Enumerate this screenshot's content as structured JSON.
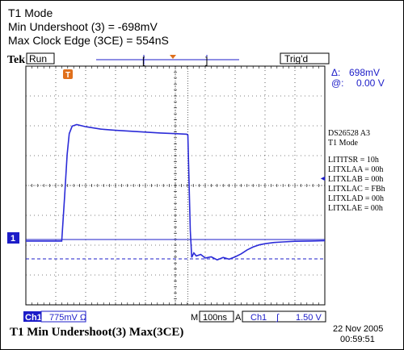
{
  "header": {
    "mode": "T1 Mode",
    "min_undershoot": "Min Undershoot (3) = -698mV",
    "max_clock_edge": "Max Clock Edge (3CE) = 554nS"
  },
  "topbar": {
    "brand": "Tek",
    "run_state": "Run",
    "trig_state": "Trig'd"
  },
  "cursor_readout": {
    "delta_symbol": "Δ:",
    "delta_value": "698mV",
    "at_symbol": "@:",
    "at_value": "0.00 V"
  },
  "markers": {
    "trigger_marker": "T",
    "channel_marker": "1",
    "ch1_arrow": "◄"
  },
  "device_info": {
    "line1": "DS26528  A3",
    "line2": "T1 Mode",
    "registers": [
      "LITITSR = 10h",
      "LITXLAA = 00h",
      "LITXLAB = 00h",
      "LITXLAC = FBh",
      "LITXLAD = 00h",
      "LITXLAE = 00h"
    ]
  },
  "bottombar": {
    "channel": "Ch1",
    "scale": "775mV Ω",
    "timebase_label": "M",
    "timebase": "100ns",
    "trigger_mode": "A",
    "trigger_source": "Ch1",
    "trigger_slope": "∫",
    "trigger_level": "1.50 V"
  },
  "footer": {
    "caption": "T1 Min Undershoot(3)  Max(3CE)",
    "date": "22 Nov 2005",
    "time": "00:59:51"
  },
  "colors": {
    "trace": "#2b2bd8",
    "scope_blue": "#1c1cc8",
    "trigger_orange": "#e0701c",
    "grid": "#000000"
  },
  "waveform": {
    "units_x": "divisions",
    "units_y": "divisions",
    "points": [
      [
        0.0,
        -0.05
      ],
      [
        1.2,
        -0.05
      ],
      [
        1.3,
        1.5
      ],
      [
        1.38,
        2.85
      ],
      [
        1.45,
        3.55
      ],
      [
        1.55,
        3.8
      ],
      [
        1.7,
        3.85
      ],
      [
        2.0,
        3.78
      ],
      [
        2.5,
        3.7
      ],
      [
        3.0,
        3.66
      ],
      [
        3.5,
        3.63
      ],
      [
        4.0,
        3.6
      ],
      [
        4.5,
        3.57
      ],
      [
        5.0,
        3.55
      ],
      [
        5.38,
        3.53
      ],
      [
        5.42,
        3.5
      ],
      [
        5.5,
        0.3
      ],
      [
        5.55,
        -0.6
      ],
      [
        5.62,
        -0.45
      ],
      [
        5.7,
        -0.55
      ],
      [
        5.85,
        -0.5
      ],
      [
        6.0,
        -0.62
      ],
      [
        6.2,
        -0.58
      ],
      [
        6.4,
        -0.68
      ],
      [
        6.6,
        -0.6
      ],
      [
        6.8,
        -0.66
      ],
      [
        7.0,
        -0.58
      ],
      [
        7.2,
        -0.48
      ],
      [
        7.4,
        -0.35
      ],
      [
        7.6,
        -0.25
      ],
      [
        7.8,
        -0.18
      ],
      [
        8.0,
        -0.14
      ],
      [
        8.3,
        -0.1
      ],
      [
        8.6,
        -0.08
      ],
      [
        9.0,
        -0.06
      ],
      [
        9.5,
        -0.05
      ],
      [
        10.0,
        -0.04
      ]
    ],
    "ch1_ground_div": 0,
    "dashed_cursor_div": -0.65,
    "trigger_div": 5.42
  }
}
